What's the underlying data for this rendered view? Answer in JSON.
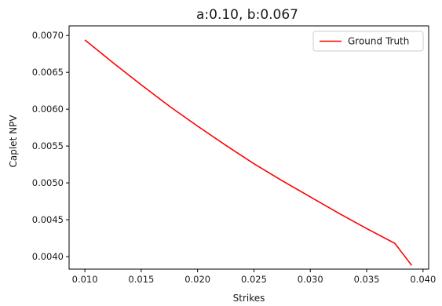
{
  "chart_data": {
    "type": "line",
    "title": "a:0.10, b:0.067",
    "xlabel": "Strikes",
    "ylabel": "Caplet NPV",
    "xlim": [
      0.0086,
      0.0405
    ],
    "ylim": [
      0.00383,
      0.00713
    ],
    "xticks": [
      0.01,
      0.015,
      0.02,
      0.025,
      0.03,
      0.035,
      0.04
    ],
    "xtick_labels": [
      "0.010",
      "0.015",
      "0.020",
      "0.025",
      "0.030",
      "0.035",
      "0.040"
    ],
    "yticks": [
      0.004,
      0.0045,
      0.005,
      0.0055,
      0.006,
      0.0065,
      0.007
    ],
    "ytick_labels": [
      "0.0040",
      "0.0045",
      "0.0050",
      "0.0055",
      "0.0060",
      "0.0065",
      "0.0070"
    ],
    "grid": false,
    "legend_position": "top-right",
    "series": [
      {
        "name": "Ground Truth",
        "color": "#ff0000",
        "x": [
          0.01,
          0.0125,
          0.015,
          0.0175,
          0.02,
          0.0225,
          0.025,
          0.0275,
          0.03,
          0.0325,
          0.035,
          0.0375,
          0.039
        ],
        "y": [
          0.00694,
          0.00663,
          0.00633,
          0.00604,
          0.00577,
          0.00551,
          0.00526,
          0.00503,
          0.00481,
          0.00459,
          0.00438,
          0.00418,
          0.00388
        ]
      }
    ]
  }
}
